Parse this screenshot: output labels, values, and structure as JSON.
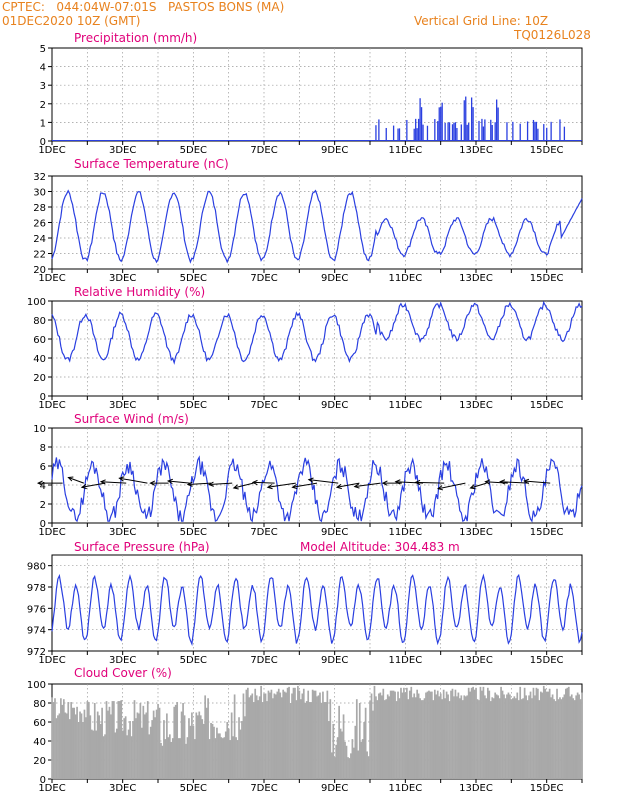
{
  "header": {
    "station": "CPTEC:   044:04W-07:01S   PASTOS BONS (MA)",
    "run": "01DEC2020 10Z (GMT)",
    "grid_note": "Vertical Grid Line: 10Z",
    "code": "TQ0126L028",
    "model_altitude": "Model Altitude: 304.483 m"
  },
  "colors": {
    "header": "#e8821e",
    "title": "#e0007a",
    "line": "#2a3fe0",
    "cloud": "#a9a9a9",
    "grid": "#9a9a9a"
  },
  "chart_data": [
    {
      "type": "bar",
      "title": "Precipitation (mm/h)",
      "ylim": [
        0,
        5
      ],
      "yticks": [
        0,
        1,
        2,
        3,
        4,
        5
      ],
      "x_tick_labels": [
        "1DEC",
        "3DEC",
        "5DEC",
        "7DEC",
        "9DEC",
        "11DEC",
        "13DEC",
        "15DEC"
      ],
      "x_day_range": [
        1,
        16
      ],
      "values": []
    },
    {
      "type": "line",
      "title": "Surface Temperature (nC)",
      "ylim": [
        20,
        32
      ],
      "yticks": [
        20,
        22,
        24,
        26,
        28,
        30,
        32
      ],
      "x_tick_labels": [
        "1DEC",
        "3DEC",
        "5DEC",
        "7DEC",
        "9DEC",
        "11DEC",
        "13DEC",
        "15DEC"
      ],
      "x_day_range": [
        1,
        16
      ],
      "values": []
    },
    {
      "type": "line",
      "title": "Relative Humidity (%)",
      "ylim": [
        0,
        100
      ],
      "yticks": [
        0,
        20,
        40,
        60,
        80,
        100
      ],
      "x_tick_labels": [
        "1DEC",
        "3DEC",
        "5DEC",
        "7DEC",
        "9DEC",
        "11DEC",
        "13DEC",
        "15DEC"
      ],
      "x_day_range": [
        1,
        16
      ],
      "values": []
    },
    {
      "type": "line",
      "title": "Surface Wind (m/s)",
      "ylim": [
        0,
        10
      ],
      "yticks": [
        0,
        2,
        4,
        6,
        8,
        10
      ],
      "x_tick_labels": [
        "1DEC",
        "3DEC",
        "5DEC",
        "7DEC",
        "9DEC",
        "11DEC",
        "13DEC",
        "15DEC"
      ],
      "x_day_range": [
        1,
        16
      ],
      "values": [],
      "arrows": []
    },
    {
      "type": "line",
      "title": "Surface Pressure (hPa)",
      "ylim": [
        972,
        981
      ],
      "yticks": [
        972,
        974,
        976,
        978,
        980
      ],
      "x_tick_labels": [
        "1DEC",
        "3DEC",
        "5DEC",
        "7DEC",
        "9DEC",
        "11DEC",
        "13DEC",
        "15DEC"
      ],
      "x_day_range": [
        1,
        16
      ],
      "values": []
    },
    {
      "type": "area",
      "title": "Cloud Cover (%)",
      "ylim": [
        0,
        100
      ],
      "yticks": [
        0,
        20,
        40,
        60,
        80,
        100
      ],
      "x_tick_labels": [
        "1DEC",
        "3DEC",
        "5DEC",
        "7DEC",
        "9DEC",
        "11DEC",
        "13DEC",
        "15DEC"
      ],
      "x_day_range": [
        1,
        16
      ],
      "values": []
    }
  ]
}
